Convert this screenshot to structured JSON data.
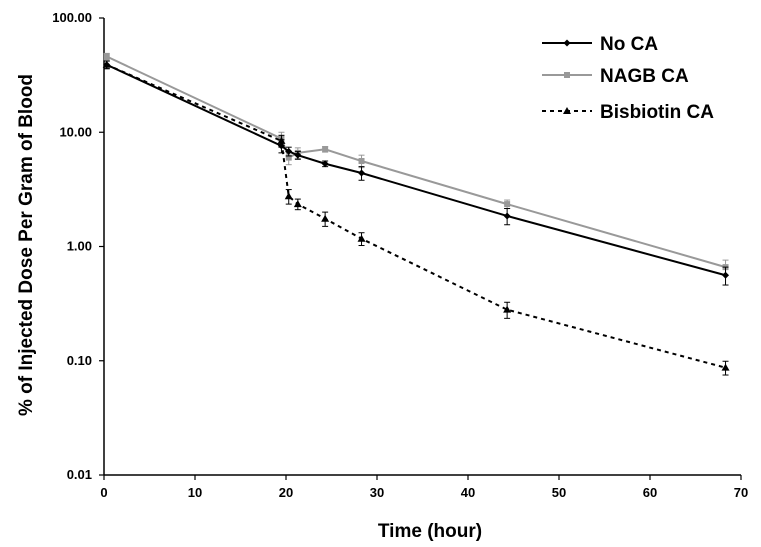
{
  "chart_data": {
    "type": "line",
    "title": "",
    "xlabel": "Time (hour)",
    "ylabel": "% of Injected Dose Per Gram of Blood",
    "x_scale": "linear",
    "y_scale": "log",
    "xlim": [
      0,
      70
    ],
    "ylim": [
      0.01,
      100
    ],
    "x_ticks": [
      "0",
      "10",
      "20",
      "30",
      "40",
      "50",
      "60",
      "70"
    ],
    "y_ticks": [
      "0.01",
      "0.10",
      "1.00",
      "10.00",
      "100.00"
    ],
    "grid": false,
    "legend_position": "top-right",
    "series": [
      {
        "name": "No CA",
        "color": "#000000",
        "line_style": "solid",
        "marker": "diamond",
        "x": [
          0.3,
          19.5,
          20.3,
          21.3,
          24.3,
          28.3,
          44.3,
          68.3
        ],
        "y": [
          39,
          7.6,
          6.8,
          6.3,
          5.3,
          4.4,
          1.85,
          0.56
        ],
        "err": [
          3,
          1.0,
          0.6,
          0.5,
          0.3,
          0.6,
          0.3,
          0.1
        ]
      },
      {
        "name": "NAGB CA",
        "color": "#999999",
        "line_style": "solid",
        "marker": "square",
        "x": [
          0.3,
          19.5,
          20.3,
          21.3,
          24.3,
          28.3,
          44.3,
          68.3
        ],
        "y": [
          46,
          8.8,
          6.0,
          6.6,
          7.1,
          5.6,
          2.35,
          0.66
        ],
        "err": [
          3,
          1.2,
          0.8,
          0.7,
          0.4,
          0.7,
          0.2,
          0.1
        ]
      },
      {
        "name": "Bisbiotin CA",
        "color": "#000000",
        "line_style": "dashed",
        "marker": "triangle",
        "x": [
          0.3,
          19.5,
          20.3,
          21.3,
          24.3,
          28.3,
          44.3,
          68.3
        ],
        "y": [
          39,
          8.4,
          2.75,
          2.35,
          1.75,
          1.17,
          0.28,
          0.087
        ],
        "err": [
          3,
          1.0,
          0.4,
          0.25,
          0.25,
          0.15,
          0.045,
          0.012
        ]
      }
    ]
  }
}
